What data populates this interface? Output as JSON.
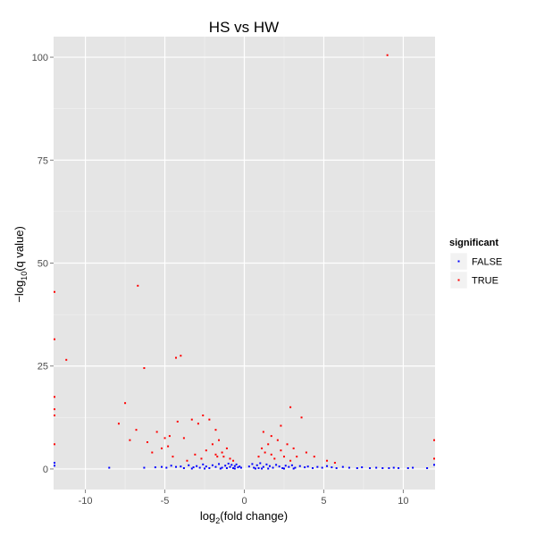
{
  "chart_data": {
    "type": "scatter",
    "title": "HS vs HW",
    "xlabel_prefix": "log",
    "xlabel_sub": "2",
    "xlabel_suffix": "(fold change)",
    "ylabel_prefix": "−log",
    "ylabel_sub": "10",
    "ylabel_suffix": "(q value)",
    "xlim": [
      -12,
      12
    ],
    "ylim": [
      -5,
      105
    ],
    "x_ticks": [
      -10,
      -5,
      0,
      5,
      10
    ],
    "y_ticks": [
      0,
      25,
      50,
      75,
      100
    ],
    "grid": true,
    "legend": {
      "title": "significant",
      "position": "right",
      "entries": [
        {
          "label": "FALSE",
          "color": "#0000ff"
        },
        {
          "label": "TRUE",
          "color": "#ff0000"
        }
      ]
    },
    "series": [
      {
        "name": "FALSE",
        "color": "#0000ff",
        "x": [
          -12,
          -12,
          -8.5,
          -6.3,
          -5.6,
          -5.2,
          -4.9,
          -4.6,
          -4.3,
          -4.0,
          -3.8,
          -3.5,
          -3.2,
          -3.0,
          -2.8,
          -2.6,
          -2.4,
          -2.2,
          -2.0,
          -1.8,
          -1.6,
          -1.4,
          -1.2,
          -1.0,
          -0.9,
          -0.8,
          -0.7,
          -0.6,
          -0.5,
          -0.4,
          -0.3,
          -0.2,
          -1.5,
          -1.1,
          -0.6,
          -2.5,
          -3.3,
          0.3,
          0.5,
          0.6,
          0.8,
          1.0,
          1.2,
          1.4,
          1.6,
          1.8,
          2.0,
          2.2,
          2.4,
          2.6,
          2.8,
          3.0,
          3.2,
          3.5,
          3.8,
          4.0,
          4.3,
          4.6,
          4.9,
          5.2,
          5.5,
          5.8,
          6.2,
          6.6,
          7.1,
          7.4,
          7.9,
          8.3,
          8.7,
          9.1,
          9.4,
          9.7,
          10.3,
          10.6,
          11.5,
          12,
          0.7,
          1.1,
          1.5,
          0.9,
          2.5,
          3.1
        ],
        "y": [
          0.8,
          1.5,
          0.3,
          0.3,
          0.4,
          0.5,
          0.3,
          0.8,
          0.5,
          0.6,
          0.2,
          0.9,
          0.4,
          0.7,
          0.3,
          1.1,
          0.6,
          0.2,
          0.9,
          0.5,
          1.2,
          0.3,
          0.8,
          1.3,
          0.5,
          1.0,
          0.2,
          0.7,
          1.1,
          0.4,
          0.6,
          0.3,
          0.1,
          0.2,
          0.1,
          0.1,
          0.1,
          0.6,
          1.2,
          0.3,
          0.9,
          1.4,
          0.5,
          1.1,
          0.7,
          0.3,
          1.0,
          0.6,
          0.2,
          0.8,
          0.5,
          0.9,
          0.3,
          0.7,
          0.4,
          0.6,
          0.2,
          0.5,
          0.3,
          0.7,
          0.4,
          0.2,
          0.5,
          0.3,
          0.2,
          0.4,
          0.2,
          0.3,
          0.2,
          0.2,
          0.3,
          0.2,
          0.2,
          0.3,
          0.2,
          1.0,
          0.1,
          0.1,
          0.1,
          0.2,
          0.1,
          0.1
        ]
      },
      {
        "name": "TRUE",
        "color": "#ff0000",
        "x": [
          9.0,
          -12,
          -12,
          -12,
          -12,
          -12,
          -12,
          -11.2,
          -6.7,
          -6.3,
          -4.3,
          -4.0,
          -7.5,
          -7.9,
          -6.8,
          -7.2,
          -5.5,
          -5.8,
          -4.7,
          -4.2,
          -3.8,
          -3.3,
          -2.9,
          -2.6,
          -2.4,
          -2.0,
          -1.8,
          -1.6,
          -1.3,
          -1.1,
          -0.9,
          -0.7,
          -2.2,
          -1.7,
          -1.4,
          -2.7,
          -3.1,
          -3.6,
          -4.5,
          -5.2,
          -6.1,
          0.9,
          1.1,
          1.3,
          1.5,
          1.7,
          1.9,
          2.1,
          2.3,
          2.5,
          2.7,
          2.9,
          3.1,
          3.3,
          3.6,
          3.9,
          4.4,
          5.2,
          5.7,
          1.7,
          2.3,
          2.9,
          12,
          12,
          -5.0,
          -4.8,
          -1.8,
          1.2
        ],
        "y": [
          100.5,
          43.0,
          31.5,
          17.5,
          14.5,
          13.0,
          6.0,
          26.5,
          44.5,
          24.5,
          27.0,
          27.5,
          16.0,
          11.0,
          9.5,
          7.0,
          9.0,
          4.0,
          8.0,
          11.5,
          7.5,
          12.0,
          11.0,
          13.0,
          4.5,
          6.0,
          3.5,
          7.0,
          3.0,
          5.0,
          2.5,
          2.0,
          12.0,
          3.0,
          4.0,
          2.5,
          3.5,
          2.0,
          3.0,
          5.0,
          6.5,
          3.0,
          5.0,
          4.0,
          6.0,
          3.5,
          2.5,
          7.0,
          4.5,
          3.0,
          6.0,
          15.0,
          5.0,
          3.0,
          12.5,
          4.0,
          3.0,
          2.0,
          1.5,
          8.0,
          10.5,
          2.0,
          7.0,
          2.5,
          7.5,
          5.5,
          9.5,
          9.0
        ]
      }
    ]
  }
}
